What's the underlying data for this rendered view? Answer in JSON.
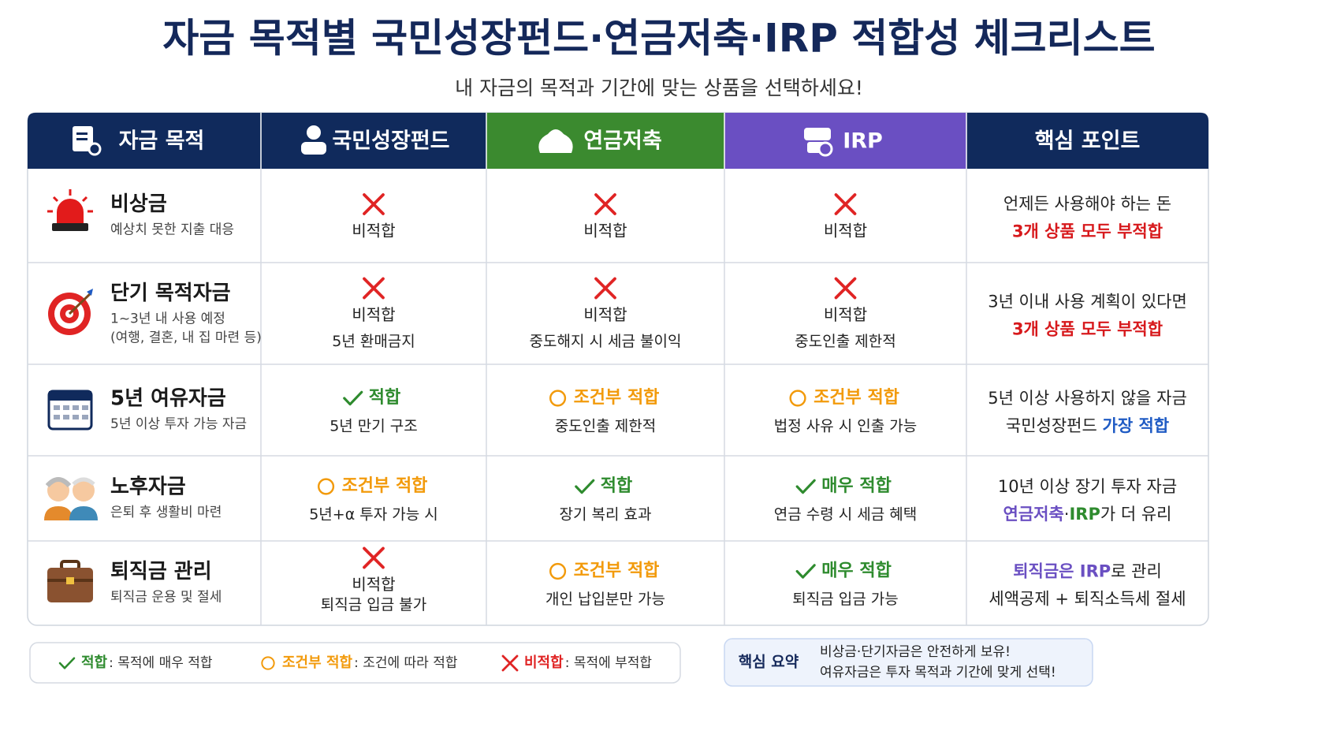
{
  "title": "자금 목적별 국민성장펀드·연금저축·IRP 적합성 체크리스트",
  "subtitle": "내 자금의 목적과 기간에 맞는 상품을 선택하세요!",
  "table": {
    "headers": [
      "자금 목적",
      "국민성장펀드",
      "연금저축",
      "IRP",
      "핵심 포인트"
    ],
    "header_colors": [
      "#102a5c",
      "#102a5c",
      "#3b8a2f",
      "#6a4fc2",
      "#102a5c"
    ],
    "rows": [
      {
        "title": "비상금",
        "desc": [
          "예상치 못한 지출 대응"
        ],
        "cells": [
          {
            "icon": "cross",
            "color": "#e02424",
            "status": "비적합",
            "status_color": "#222222"
          },
          {
            "icon": "cross",
            "color": "#e02424",
            "status": "비적합",
            "status_color": "#222222"
          },
          {
            "icon": "cross",
            "color": "#e02424",
            "status": "비적합",
            "status_color": "#222222"
          }
        ],
        "point": [
          [
            {
              "text": "언제든 사용해야 하는 돈",
              "color": "#222222"
            }
          ],
          [
            {
              "text": "3개 상품 모두 부적합",
              "color": "#d7191c"
            }
          ]
        ]
      },
      {
        "title": "단기 목적자금",
        "desc": [
          "1~3년 내 사용 예정",
          "(여행, 결혼, 내 집 마련 등)"
        ],
        "cells": [
          {
            "icon": "cross",
            "color": "#e02424",
            "status": "비적합",
            "status_color": "#222222",
            "note": "5년 환매금지"
          },
          {
            "icon": "cross",
            "color": "#e02424",
            "status": "비적합",
            "status_color": "#222222",
            "note": "중도해지 시 세금 불이익"
          },
          {
            "icon": "cross",
            "color": "#e02424",
            "status": "비적합",
            "status_color": "#222222",
            "note": "중도인출 제한적"
          }
        ],
        "point": [
          [
            {
              "text": "3년 이내 사용 계획이 있다면",
              "color": "#222222"
            }
          ],
          [
            {
              "text": "3개 상품 모두 부적합",
              "color": "#d7191c"
            }
          ]
        ]
      },
      {
        "title": "5년 여유자금",
        "desc": [
          "5년 이상 투자 가능 자금"
        ],
        "cells": [
          {
            "icon": "check",
            "color": "#2e8b2e",
            "status": "적합",
            "status_color": "#2e8b2e",
            "note": "5년 만기 구조"
          },
          {
            "icon": "circle",
            "color": "#f29a0b",
            "status": "조건부 적합",
            "status_color": "#f29a0b",
            "note": "중도인출 제한적"
          },
          {
            "icon": "circle",
            "color": "#f29a0b",
            "status": "조건부 적합",
            "status_color": "#f29a0b",
            "note": "법정 사유 시 인출 가능"
          }
        ],
        "point": [
          [
            {
              "text": "5년 이상 사용하지 않을 자금",
              "color": "#222222"
            }
          ],
          [
            {
              "text": "국민성장펀드 ",
              "color": "#222222"
            },
            {
              "text": "가장 적합",
              "color": "#1f5bc4"
            }
          ]
        ]
      },
      {
        "title": "노후자금",
        "desc": [
          "은퇴 후 생활비 마련"
        ],
        "cells": [
          {
            "icon": "circle",
            "color": "#f29a0b",
            "status": "조건부 적합",
            "status_color": "#f29a0b",
            "note": "5년+α 투자 가능 시"
          },
          {
            "icon": "check",
            "color": "#2e8b2e",
            "status": "적합",
            "status_color": "#2e8b2e",
            "note": "장기 복리 효과"
          },
          {
            "icon": "check",
            "color": "#2e8b2e",
            "status": "매우 적합",
            "status_color": "#2e8b2e",
            "note": "연금 수령 시 세금 혜택"
          }
        ],
        "point": [
          [
            {
              "text": "10년 이상 장기 투자 자금",
              "color": "#222222"
            }
          ],
          [
            {
              "text": "연금저축",
              "color": "#6a4fc2"
            },
            {
              "text": "·",
              "color": "#222222"
            },
            {
              "text": "IRP",
              "color": "#2e8b2e"
            },
            {
              "text": "가 더 유리",
              "color": "#222222"
            }
          ]
        ]
      },
      {
        "title": "퇴직금 관리",
        "desc": [
          "퇴직금 운용 및 절세"
        ],
        "cells": [
          {
            "icon": "cross",
            "color": "#e02424",
            "status": "비적합",
            "status_color": "#222222",
            "note": "퇴직금 입금 불가"
          },
          {
            "icon": "circle",
            "color": "#f29a0b",
            "status": "조건부 적합",
            "status_color": "#f29a0b",
            "note": "개인 납입분만 가능"
          },
          {
            "icon": "check",
            "color": "#2e8b2e",
            "status": "매우 적합",
            "status_color": "#2e8b2e",
            "note": "퇴직금 입금 가능"
          }
        ],
        "point": [
          [
            {
              "text": "퇴직금은 IRP",
              "color": "#6a4fc2"
            },
            {
              "text": "로 관리",
              "color": "#222222"
            }
          ],
          [
            {
              "text": "세액공제 + 퇴직소득세 절세",
              "color": "#222222"
            }
          ]
        ]
      }
    ]
  },
  "legend": [
    {
      "icon": "check",
      "color": "#2e8b2e",
      "label": "적합",
      "desc": ": 목적에 매우 적합"
    },
    {
      "icon": "circle",
      "color": "#f29a0b",
      "label": "조건부 적합",
      "desc": ": 조건에 따라 적합"
    },
    {
      "icon": "cross",
      "color": "#e02424",
      "label": "비적합",
      "desc": ": 목적에 부적합"
    }
  ],
  "summary": {
    "label": "핵심 요약",
    "lines": [
      "비상금·단기자금은 안전하게 보유!",
      "여유자금은 투자 목적과 기간에 맞게 선택!"
    ]
  }
}
